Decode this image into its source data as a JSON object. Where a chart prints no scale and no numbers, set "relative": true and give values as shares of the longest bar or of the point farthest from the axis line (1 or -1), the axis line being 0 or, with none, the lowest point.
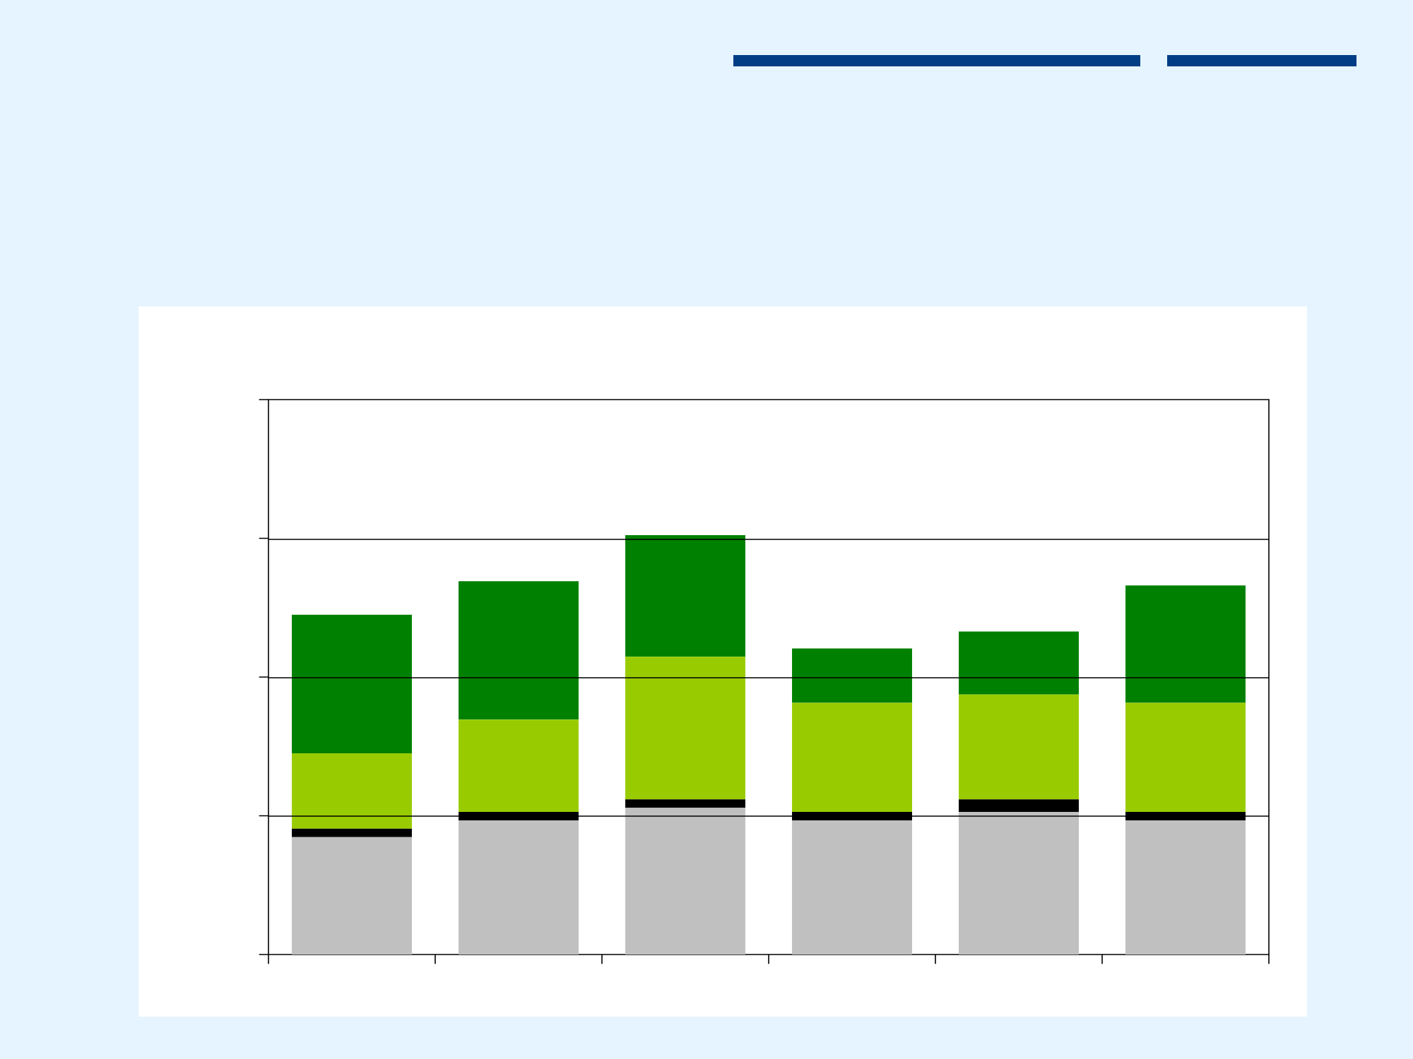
{
  "chart_data": {
    "type": "bar",
    "stacked": true,
    "relative": true,
    "ref_lines": [
      {
        "axis": "y",
        "value": 0.33,
        "color": "#000000"
      },
      {
        "axis": "y",
        "value": 0.66,
        "color": "#000000"
      },
      {
        "axis": "y",
        "value": 0.99,
        "color": "#000000"
      }
    ],
    "tick_labels": false,
    "categories": [
      null,
      null,
      null,
      null,
      null,
      null
    ],
    "series": [
      {
        "color": "#c0c0c0",
        "values": [
          0.28,
          0.32,
          0.35,
          0.32,
          0.34,
          0.32
        ]
      },
      {
        "color": "#000000",
        "values": [
          0.02,
          0.02,
          0.02,
          0.02,
          0.03,
          0.02
        ]
      },
      {
        "color": "#99cc00",
        "values": [
          0.18,
          0.22,
          0.34,
          0.26,
          0.25,
          0.26
        ]
      },
      {
        "color": "#008000",
        "values": [
          0.33,
          0.33,
          0.29,
          0.13,
          0.15,
          0.28
        ]
      }
    ]
  }
}
